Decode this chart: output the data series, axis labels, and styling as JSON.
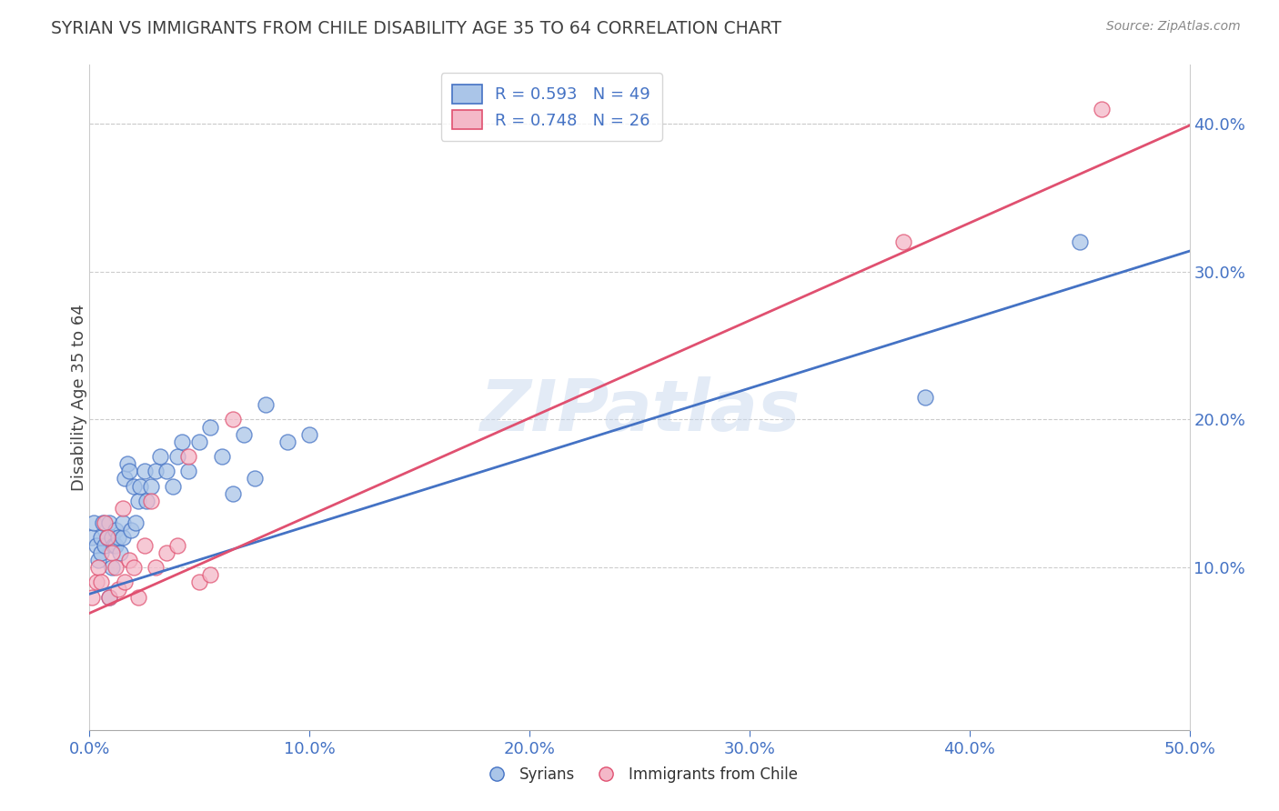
{
  "title": "SYRIAN VS IMMIGRANTS FROM CHILE DISABILITY AGE 35 TO 64 CORRELATION CHART",
  "source": "Source: ZipAtlas.com",
  "ylabel": "Disability Age 35 to 64",
  "xlim": [
    0.0,
    0.5
  ],
  "ylim": [
    -0.01,
    0.44
  ],
  "xticks": [
    0.0,
    0.1,
    0.2,
    0.3,
    0.4,
    0.5
  ],
  "yticks": [
    0.1,
    0.2,
    0.3,
    0.4
  ],
  "ytick_labels": [
    "10.0%",
    "20.0%",
    "30.0%",
    "40.0%"
  ],
  "xtick_labels": [
    "0.0%",
    "10.0%",
    "20.0%",
    "30.0%",
    "40.0%",
    "50.0%"
  ],
  "legend_r1": "R = 0.593",
  "legend_n1": "N = 49",
  "legend_r2": "R = 0.748",
  "legend_n2": "N = 26",
  "color_blue": "#aac5e8",
  "color_pink": "#f4b8c8",
  "line_color_blue": "#4472c4",
  "line_color_pink": "#e05070",
  "watermark": "ZIPatlas",
  "title_color": "#404040",
  "tick_color": "#4472c4",
  "source_color": "#888888",
  "slope_syr": 0.464,
  "intercept_syr": 0.082,
  "slope_chile": 0.66,
  "intercept_chile": 0.069,
  "syrians_x": [
    0.001,
    0.002,
    0.003,
    0.004,
    0.005,
    0.005,
    0.006,
    0.007,
    0.008,
    0.009,
    0.009,
    0.01,
    0.01,
    0.011,
    0.012,
    0.012,
    0.013,
    0.014,
    0.015,
    0.015,
    0.016,
    0.017,
    0.018,
    0.019,
    0.02,
    0.021,
    0.022,
    0.023,
    0.025,
    0.026,
    0.028,
    0.03,
    0.032,
    0.035,
    0.038,
    0.04,
    0.042,
    0.045,
    0.05,
    0.055,
    0.06,
    0.065,
    0.07,
    0.075,
    0.08,
    0.09,
    0.1,
    0.38,
    0.45
  ],
  "syrians_y": [
    0.12,
    0.13,
    0.115,
    0.105,
    0.11,
    0.12,
    0.13,
    0.115,
    0.12,
    0.13,
    0.08,
    0.12,
    0.1,
    0.115,
    0.125,
    0.115,
    0.12,
    0.11,
    0.12,
    0.13,
    0.16,
    0.17,
    0.165,
    0.125,
    0.155,
    0.13,
    0.145,
    0.155,
    0.165,
    0.145,
    0.155,
    0.165,
    0.175,
    0.165,
    0.155,
    0.175,
    0.185,
    0.165,
    0.185,
    0.195,
    0.175,
    0.15,
    0.19,
    0.16,
    0.21,
    0.185,
    0.19,
    0.215,
    0.32
  ],
  "chile_x": [
    0.001,
    0.003,
    0.004,
    0.005,
    0.007,
    0.008,
    0.009,
    0.01,
    0.012,
    0.013,
    0.015,
    0.016,
    0.018,
    0.02,
    0.022,
    0.025,
    0.028,
    0.03,
    0.035,
    0.04,
    0.045,
    0.05,
    0.055,
    0.065,
    0.37,
    0.46
  ],
  "chile_y": [
    0.08,
    0.09,
    0.1,
    0.09,
    0.13,
    0.12,
    0.08,
    0.11,
    0.1,
    0.085,
    0.14,
    0.09,
    0.105,
    0.1,
    0.08,
    0.115,
    0.145,
    0.1,
    0.11,
    0.115,
    0.175,
    0.09,
    0.095,
    0.2,
    0.32,
    0.41
  ]
}
